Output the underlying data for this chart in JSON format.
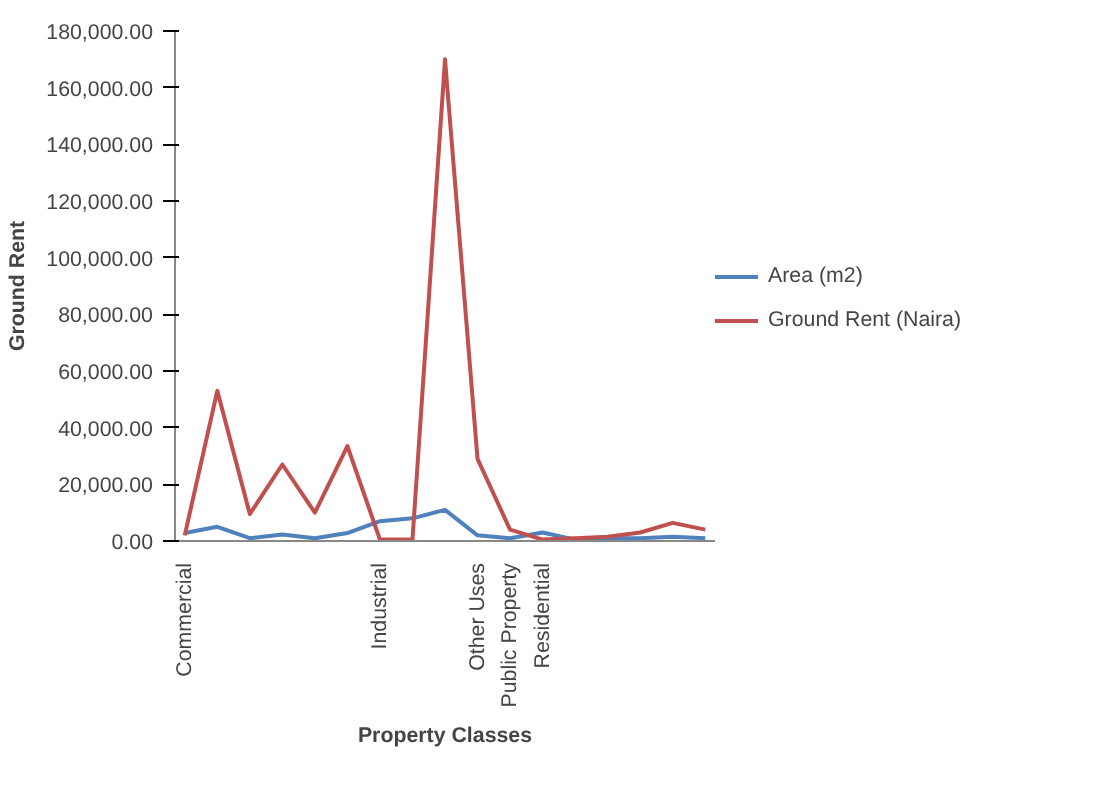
{
  "chart_data": {
    "type": "line",
    "xlabel": "Property Classes",
    "ylabel": "Ground Rent",
    "categories": [
      "Commercial",
      null,
      null,
      null,
      null,
      null,
      "Industrial",
      null,
      null,
      "Other Uses",
      "Public Property",
      "Residential",
      null,
      null,
      null,
      null,
      null
    ],
    "series": [
      {
        "name": "Area (m2)",
        "color": "#4f81bd",
        "values": [
          2800,
          5000,
          1000,
          2300,
          1000,
          2800,
          7000,
          8000,
          11000,
          2000,
          1000,
          3000,
          500,
          1000,
          1000,
          1500,
          1000
        ]
      },
      {
        "name": "Ground Rent (Naira)",
        "color": "#c0504d",
        "values": [
          2000,
          53000,
          9500,
          27000,
          10000,
          33500,
          500,
          500,
          170000,
          29000,
          4000,
          500,
          1000,
          1500,
          3000,
          6400,
          4000
        ]
      }
    ],
    "ylim": [
      0,
      180000
    ],
    "yticks": [
      {
        "value": 0,
        "label": "0.00"
      },
      {
        "value": 20000,
        "label": "20,000.00"
      },
      {
        "value": 40000,
        "label": "40,000.00"
      },
      {
        "value": 60000,
        "label": "60,000.00"
      },
      {
        "value": 80000,
        "label": "80,000.00"
      },
      {
        "value": 100000,
        "label": "100,000.00"
      },
      {
        "value": 120000,
        "label": "120,000.00"
      },
      {
        "value": 140000,
        "label": "140,000.00"
      },
      {
        "value": 160000,
        "label": "160,000.00"
      },
      {
        "value": 180000,
        "label": "180,000.00"
      }
    ],
    "grid": false,
    "legend": "right",
    "marker": "none",
    "line_style": "solid"
  }
}
